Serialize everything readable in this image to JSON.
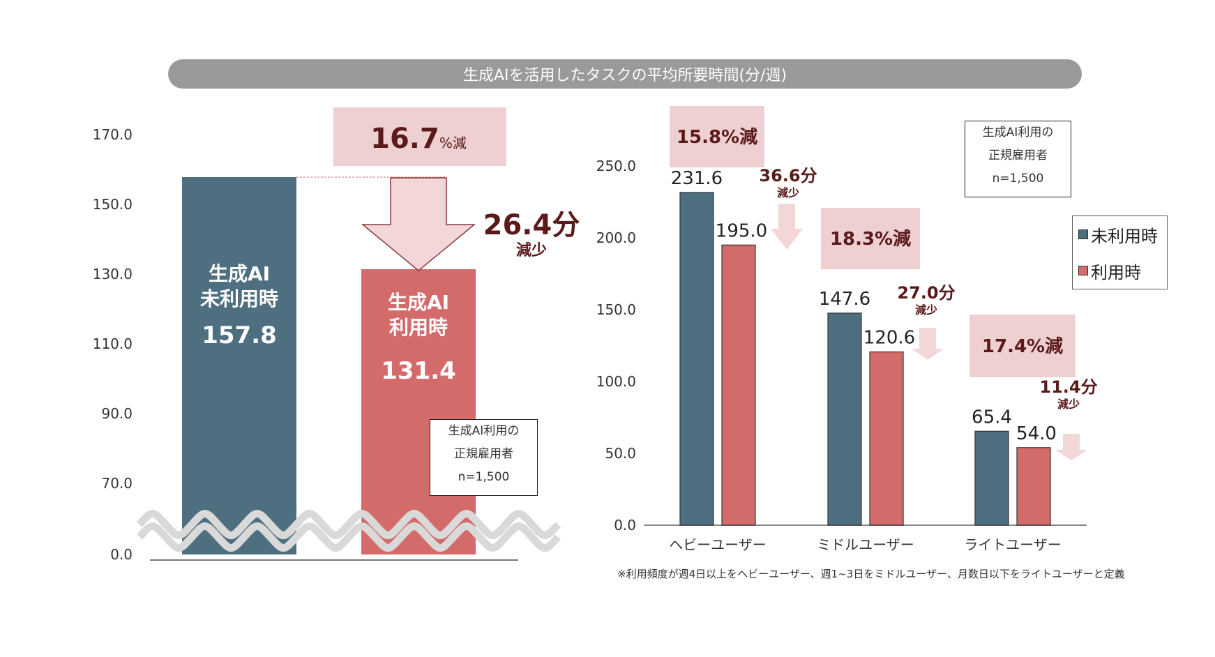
{
  "title": "生成AIを活用したタスクの平均所要時間(分/週)",
  "colors": {
    "not_used": "#4e6f80",
    "used": "#d46b6b",
    "pink_box": "#efd0d2",
    "arrow_fill": "#f2d6d8",
    "arrow_stroke": "#8a3a3a",
    "squiggle": "#d9d9d9",
    "title_bar": "#9a9a9c"
  },
  "chart_data": [
    {
      "type": "bar",
      "title": "生成AIを活用したタスクの平均所要時間(分/週)",
      "categories": [
        "生成AI未利用時",
        "生成AI利用時"
      ],
      "values": [
        157.8,
        131.4
      ],
      "value_labels": [
        "157.8",
        "131.4"
      ],
      "bar_labels": [
        [
          "生成AI",
          "未利用時"
        ],
        [
          "生成AI",
          "利用時"
        ]
      ],
      "yticks": [
        "0.0",
        "70.0",
        "90.0",
        "110.0",
        "130.0",
        "150.0",
        "170.0"
      ],
      "ylim": [
        50,
        170
      ],
      "axis_break": true,
      "annotation_pct": {
        "value": "16.7",
        "suffix": "%減"
      },
      "annotation_diff": {
        "value": "26.4分",
        "sub": "減少"
      },
      "note": [
        "生成AI利用の",
        "正規雇用者",
        "n=1,500"
      ]
    },
    {
      "type": "bar",
      "categories": [
        "ヘビーユーザー",
        "ミドルユーザー",
        "ライトユーザー"
      ],
      "series": [
        {
          "name": "未利用時",
          "values": [
            231.6,
            147.6,
            65.4
          ]
        },
        {
          "name": "利用時",
          "values": [
            195.0,
            120.6,
            54.0
          ]
        }
      ],
      "value_labels": [
        [
          "231.6",
          "195.0"
        ],
        [
          "147.6",
          "120.6"
        ],
        [
          "65.4",
          "54.0"
        ]
      ],
      "yticks": [
        "0.0",
        "50.0",
        "100.0",
        "150.0",
        "200.0",
        "250.0"
      ],
      "ylim": [
        0,
        250
      ],
      "reductions_pct": [
        "15.8%減",
        "18.3%減",
        "17.4%減"
      ],
      "reductions_min": [
        "36.6分",
        "27.0分",
        "11.4分"
      ],
      "reduction_sub": "減少",
      "legend": [
        "未利用時",
        "利用時"
      ],
      "legend_position": "right",
      "note": [
        "生成AI利用の",
        "正規雇用者",
        "n=1,500"
      ],
      "footnote": "※利用頻度が週4日以上をヘビーユーザー、週1~3日をミドルユーザー、月数日以下をライトユーザーと定義"
    }
  ]
}
